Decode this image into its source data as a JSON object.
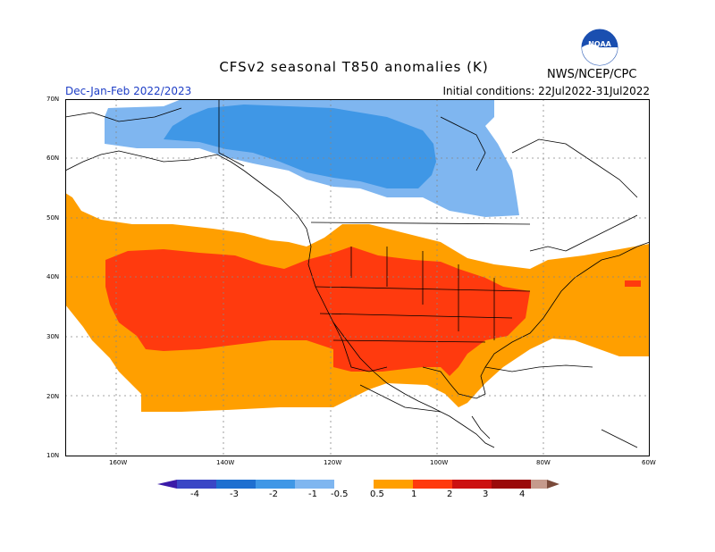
{
  "title": "CFSv2 seasonal T850 anomalies (K)",
  "season_label": "Dec-Jan-Feb 2022/2023",
  "initial_conditions": "Initial conditions: 22Jul2022-31Jul2022",
  "credit": "NWS/NCEP/CPC",
  "logo_text": "NOAA",
  "lat_labels": [
    "70N",
    "60N",
    "50N",
    "40N",
    "30N",
    "20N",
    "10N"
  ],
  "lon_labels": [
    "160W",
    "140W",
    "120W",
    "100W",
    "80W",
    "60W"
  ],
  "legend": {
    "labels": [
      "-4",
      "-3",
      "-2",
      "-1",
      "-0.5",
      "0.5",
      "1",
      "2",
      "3",
      "4"
    ],
    "colors": [
      "#3a1aa8",
      "#3a46c6",
      "#1e6fd0",
      "#3f97e6",
      "#7fb6f0",
      "#ffffff",
      "#ff9f00",
      "#ff3a0e",
      "#cc1010",
      "#9a0a0a",
      "#c59a8c",
      "#7a4a3a"
    ]
  },
  "anomaly_colors": {
    "cold_weak": "#7fb6f0",
    "cold_moderate": "#3f97e6",
    "warm_weak": "#ff9f00",
    "warm_moderate": "#ff3a0e"
  }
}
